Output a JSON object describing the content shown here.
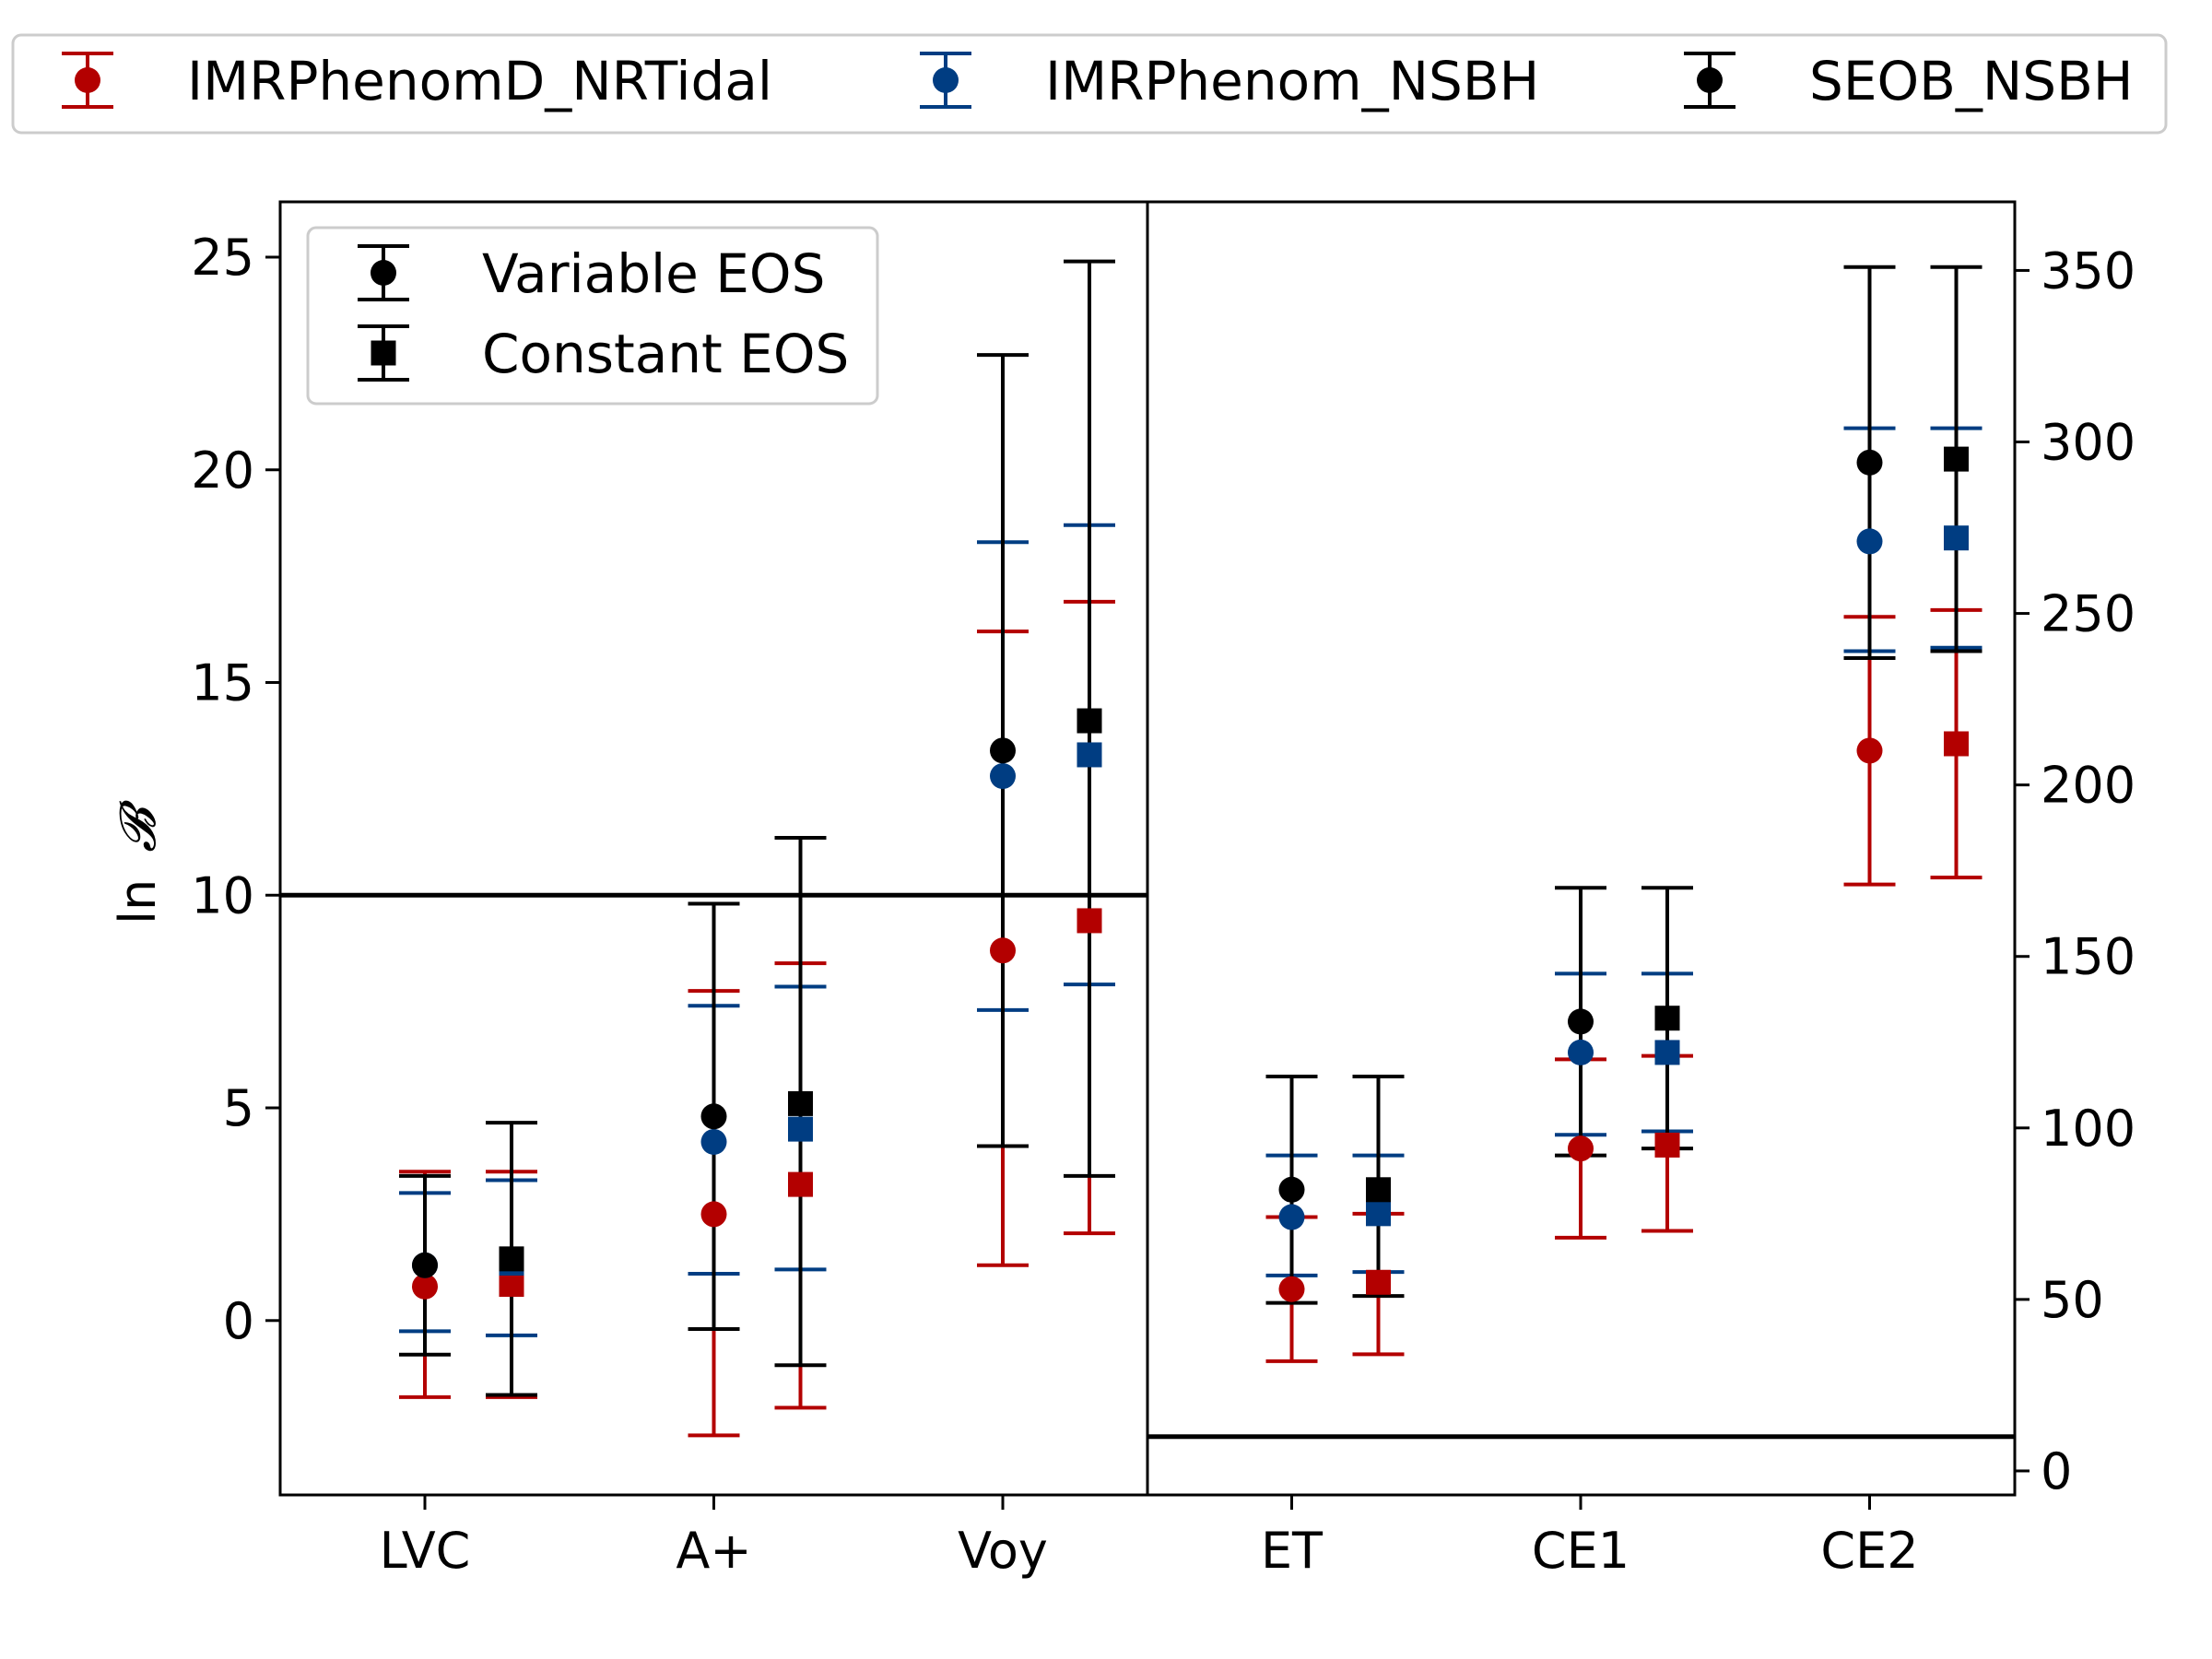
{
  "chart_data": {
    "type": "scatter",
    "title": "",
    "xlabel": "",
    "ylabel": "ln",
    "ylabel_symbol": "𝓑",
    "categories": [
      "LVC",
      "A+",
      "Voy",
      "ET",
      "CE1",
      "CE2"
    ],
    "panels": [
      {
        "name": "left",
        "categories": [
          "LVC",
          "A+",
          "Voy"
        ],
        "y_axis": "left",
        "ylim": [
          -4.1,
          26.3
        ],
        "yticks": [
          0,
          5,
          10,
          15,
          20,
          25
        ],
        "threshold": 10
      },
      {
        "name": "right",
        "categories": [
          "ET",
          "CE1",
          "CE2"
        ],
        "y_axis": "right",
        "ylim": [
          -7,
          370
        ],
        "yticks": [
          0,
          50,
          100,
          150,
          200,
          250,
          300,
          350
        ],
        "threshold": 10
      }
    ],
    "series": [
      {
        "name": "IMRPhenomD_NRTidal",
        "color": "#b30000"
      },
      {
        "name": "IMRPhenom_NSBH",
        "color": "#003d82"
      },
      {
        "name": "SEOB_NSBH",
        "color": "#000000"
      }
    ],
    "markers": [
      {
        "name": "Variable EOS",
        "shape": "circle"
      },
      {
        "name": "Constant EOS",
        "shape": "square"
      }
    ],
    "points": [
      {
        "category": "LVC",
        "eos": "Variable EOS",
        "series": "IMRPhenomD_NRTidal",
        "y": 0.8,
        "lo": -1.8,
        "hi": 3.5
      },
      {
        "category": "LVC",
        "eos": "Variable EOS",
        "series": "IMRPhenom_NSBH",
        "y": 1.3,
        "lo": -0.25,
        "hi": 3.0
      },
      {
        "category": "LVC",
        "eos": "Variable EOS",
        "series": "SEOB_NSBH",
        "y": 1.3,
        "lo": -0.8,
        "hi": 3.4
      },
      {
        "category": "LVC",
        "eos": "Constant EOS",
        "series": "IMRPhenomD_NRTidal",
        "y": 0.85,
        "lo": -1.8,
        "hi": 3.5
      },
      {
        "category": "LVC",
        "eos": "Constant EOS",
        "series": "IMRPhenom_NSBH",
        "y": 1.35,
        "lo": -0.35,
        "hi": 3.3
      },
      {
        "category": "LVC",
        "eos": "Constant EOS",
        "series": "SEOB_NSBH",
        "y": 1.45,
        "lo": -1.75,
        "hi": 4.65
      },
      {
        "category": "A+",
        "eos": "Variable EOS",
        "series": "IMRPhenomD_NRTidal",
        "y": 2.5,
        "lo": -2.7,
        "hi": 7.75
      },
      {
        "category": "A+",
        "eos": "Variable EOS",
        "series": "IMRPhenom_NSBH",
        "y": 4.2,
        "lo": 1.1,
        "hi": 7.4
      },
      {
        "category": "A+",
        "eos": "Variable EOS",
        "series": "SEOB_NSBH",
        "y": 4.8,
        "lo": -0.2,
        "hi": 9.8
      },
      {
        "category": "A+",
        "eos": "Constant EOS",
        "series": "IMRPhenomD_NRTidal",
        "y": 3.2,
        "lo": -2.05,
        "hi": 8.4
      },
      {
        "category": "A+",
        "eos": "Constant EOS",
        "series": "IMRPhenom_NSBH",
        "y": 4.5,
        "lo": 1.2,
        "hi": 7.85
      },
      {
        "category": "A+",
        "eos": "Constant EOS",
        "series": "SEOB_NSBH",
        "y": 5.1,
        "lo": -1.05,
        "hi": 11.35
      },
      {
        "category": "Voy",
        "eos": "Variable EOS",
        "series": "IMRPhenomD_NRTidal",
        "y": 8.7,
        "lo": 1.3,
        "hi": 16.2
      },
      {
        "category": "Voy",
        "eos": "Variable EOS",
        "series": "IMRPhenom_NSBH",
        "y": 12.8,
        "lo": 7.3,
        "hi": 18.3
      },
      {
        "category": "Voy",
        "eos": "Variable EOS",
        "series": "SEOB_NSBH",
        "y": 13.4,
        "lo": 4.1,
        "hi": 22.7
      },
      {
        "category": "Voy",
        "eos": "Constant EOS",
        "series": "IMRPhenomD_NRTidal",
        "y": 9.4,
        "lo": 2.05,
        "hi": 16.9
      },
      {
        "category": "Voy",
        "eos": "Constant EOS",
        "series": "IMRPhenom_NSBH",
        "y": 13.3,
        "lo": 7.9,
        "hi": 18.7
      },
      {
        "category": "Voy",
        "eos": "Constant EOS",
        "series": "SEOB_NSBH",
        "y": 14.1,
        "lo": 3.4,
        "hi": 24.9
      },
      {
        "category": "ET",
        "eos": "Variable EOS",
        "series": "IMRPhenomD_NRTidal",
        "y": 53,
        "lo": 32,
        "hi": 74
      },
      {
        "category": "ET",
        "eos": "Variable EOS",
        "series": "IMRPhenom_NSBH",
        "y": 74,
        "lo": 57,
        "hi": 92
      },
      {
        "category": "ET",
        "eos": "Variable EOS",
        "series": "SEOB_NSBH",
        "y": 82,
        "lo": 49,
        "hi": 115
      },
      {
        "category": "ET",
        "eos": "Constant EOS",
        "series": "IMRPhenomD_NRTidal",
        "y": 55,
        "lo": 34,
        "hi": 75
      },
      {
        "category": "ET",
        "eos": "Constant EOS",
        "series": "IMRPhenom_NSBH",
        "y": 75,
        "lo": 58,
        "hi": 92
      },
      {
        "category": "ET",
        "eos": "Constant EOS",
        "series": "SEOB_NSBH",
        "y": 82,
        "lo": 51,
        "hi": 115
      },
      {
        "category": "CE1",
        "eos": "Variable EOS",
        "series": "IMRPhenomD_NRTidal",
        "y": 94,
        "lo": 68,
        "hi": 120
      },
      {
        "category": "CE1",
        "eos": "Variable EOS",
        "series": "IMRPhenom_NSBH",
        "y": 122,
        "lo": 98,
        "hi": 145
      },
      {
        "category": "CE1",
        "eos": "Variable EOS",
        "series": "SEOB_NSBH",
        "y": 131,
        "lo": 92,
        "hi": 170
      },
      {
        "category": "CE1",
        "eos": "Constant EOS",
        "series": "IMRPhenomD_NRTidal",
        "y": 95,
        "lo": 70,
        "hi": 121
      },
      {
        "category": "CE1",
        "eos": "Constant EOS",
        "series": "IMRPhenom_NSBH",
        "y": 122,
        "lo": 99,
        "hi": 145
      },
      {
        "category": "CE1",
        "eos": "Constant EOS",
        "series": "SEOB_NSBH",
        "y": 132,
        "lo": 94,
        "hi": 170
      },
      {
        "category": "CE2",
        "eos": "Variable EOS",
        "series": "IMRPhenomD_NRTidal",
        "y": 210,
        "lo": 171,
        "hi": 249
      },
      {
        "category": "CE2",
        "eos": "Variable EOS",
        "series": "IMRPhenom_NSBH",
        "y": 271,
        "lo": 239,
        "hi": 304
      },
      {
        "category": "CE2",
        "eos": "Variable EOS",
        "series": "SEOB_NSBH",
        "y": 294,
        "lo": 237,
        "hi": 351
      },
      {
        "category": "CE2",
        "eos": "Constant EOS",
        "series": "IMRPhenomD_NRTidal",
        "y": 212,
        "lo": 173,
        "hi": 251
      },
      {
        "category": "CE2",
        "eos": "Constant EOS",
        "series": "IMRPhenom_NSBH",
        "y": 272,
        "lo": 240,
        "hi": 304
      },
      {
        "category": "CE2",
        "eos": "Constant EOS",
        "series": "SEOB_NSBH",
        "y": 295,
        "lo": 239,
        "hi": 351
      }
    ],
    "grid": false,
    "legend_series_placement": "top-outside",
    "legend_markers_placement": "top-left"
  }
}
